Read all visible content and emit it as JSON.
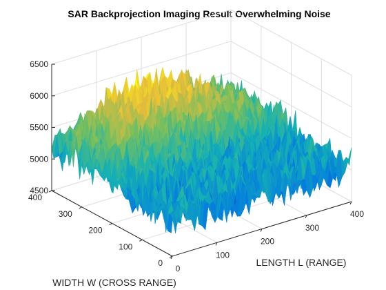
{
  "chart_data": {
    "type": "surface",
    "title": "SAR Backprojection Imaging Result Overwhelming Noise",
    "xlabel": "LENGTH L (RANGE)",
    "ylabel": "WIDTH W (CROSS RANGE)",
    "zlabel": "",
    "xlim": [
      0,
      400
    ],
    "ylim": [
      0,
      400
    ],
    "zlim": [
      4500,
      6500
    ],
    "xticks": [
      "0",
      "100",
      "200",
      "300",
      "400"
    ],
    "yticks": [
      "0",
      "100",
      "200",
      "300",
      "400"
    ],
    "zticks": [
      "4500",
      "5000",
      "5500",
      "6000",
      "6500"
    ],
    "grid": true,
    "colormap": "parula",
    "surface": {
      "description_level": "noisy pyramid-shaped surface",
      "base_level": 5050,
      "peak_level": 5800,
      "peak_at": [
        200,
        400
      ],
      "noise_amplitude": 250
    }
  }
}
